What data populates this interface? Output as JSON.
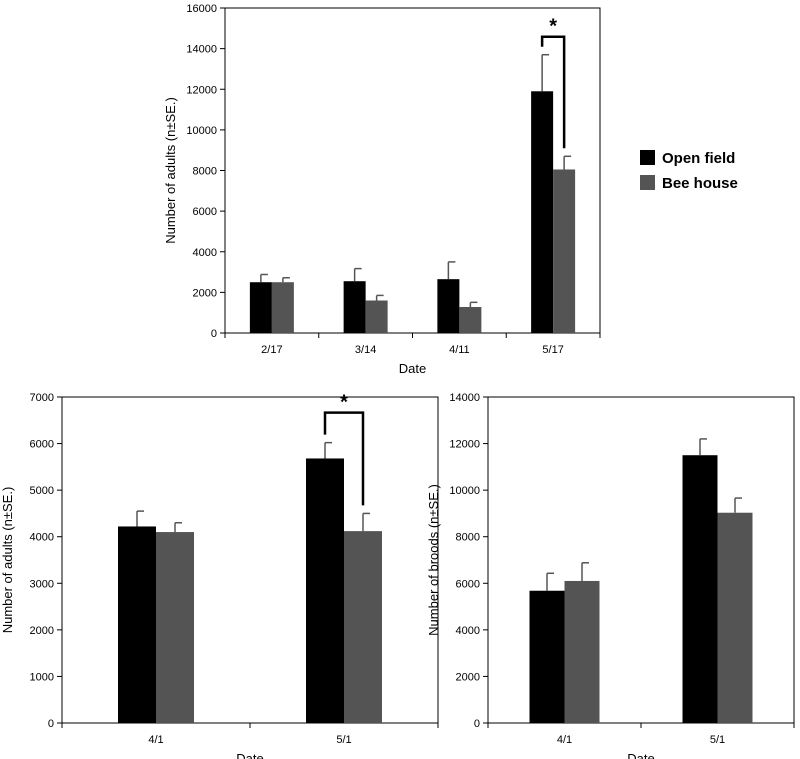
{
  "legend": {
    "items": [
      {
        "label": "Open field",
        "color": "#000000"
      },
      {
        "label": "Bee house",
        "color": "#545454"
      }
    ]
  },
  "chart_data": [
    {
      "type": "bar",
      "categories": [
        "2/17",
        "3/14",
        "4/11",
        "5/17"
      ],
      "series": [
        {
          "name": "Open field",
          "values": [
            2500,
            2550,
            2650,
            11900
          ],
          "errors": [
            380,
            620,
            850,
            1800
          ]
        },
        {
          "name": "Bee house",
          "values": [
            2500,
            1600,
            1280,
            8050
          ],
          "errors": [
            220,
            250,
            230,
            650
          ]
        }
      ],
      "xlabel": "Date",
      "ylabel": "Number of adults (n±SE.)",
      "ylim": [
        0,
        16000
      ],
      "yticks": [
        0,
        2000,
        4000,
        6000,
        8000,
        10000,
        12000,
        14000,
        16000
      ],
      "significance": {
        "category": "5/17",
        "label": "*"
      }
    },
    {
      "type": "bar",
      "categories": [
        "4/1",
        "5/1"
      ],
      "series": [
        {
          "name": "Open field",
          "values": [
            4220,
            5680
          ],
          "errors": [
            330,
            340
          ]
        },
        {
          "name": "Bee house",
          "values": [
            4100,
            4120
          ],
          "errors": [
            200,
            380
          ]
        }
      ],
      "xlabel": "Date",
      "ylabel": "Number of adults (n±SE.)",
      "ylim": [
        0,
        7000
      ],
      "yticks": [
        0,
        1000,
        2000,
        3000,
        4000,
        5000,
        6000,
        7000
      ],
      "significance": {
        "category": "5/1",
        "label": "*"
      }
    },
    {
      "type": "bar",
      "categories": [
        "4/1",
        "5/1"
      ],
      "series": [
        {
          "name": "Open field",
          "values": [
            5680,
            11500
          ],
          "errors": [
            750,
            700
          ]
        },
        {
          "name": "Bee house",
          "values": [
            6100,
            9030
          ],
          "errors": [
            780,
            630
          ]
        }
      ],
      "xlabel": "Date",
      "ylabel": "Number of broods (n±SE.)",
      "ylim": [
        0,
        14000
      ],
      "yticks": [
        0,
        2000,
        4000,
        6000,
        8000,
        10000,
        12000,
        14000
      ]
    }
  ]
}
